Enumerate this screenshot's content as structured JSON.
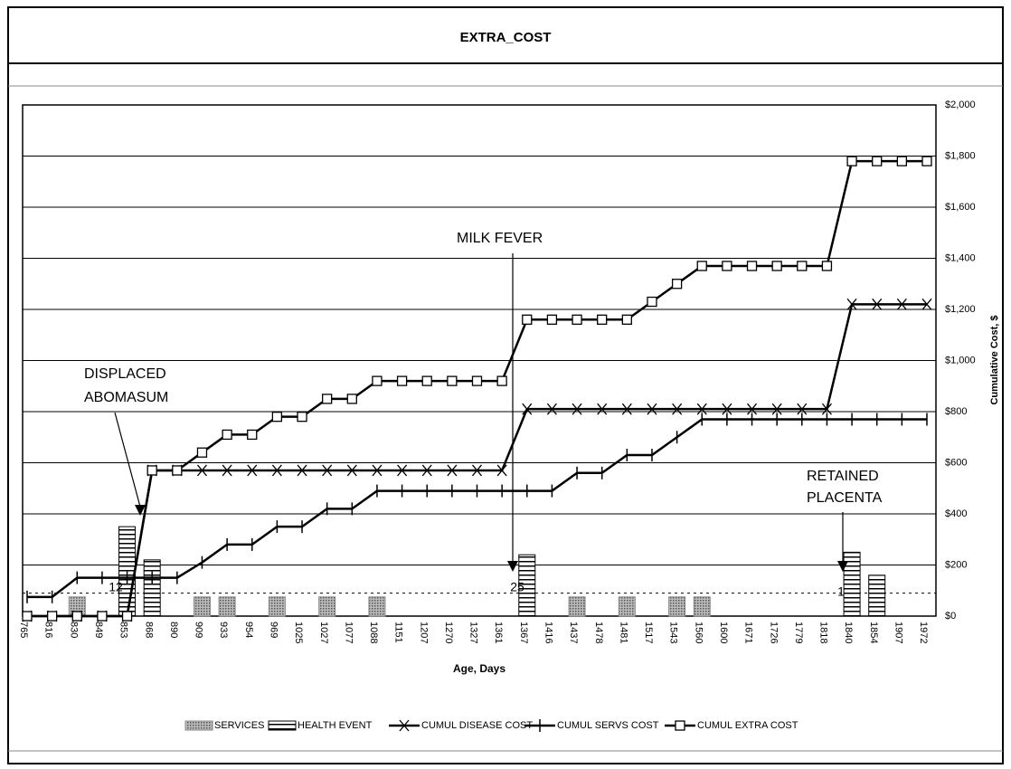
{
  "chart_data": {
    "type": "combo",
    "title": "EXTRA_COST",
    "x_label": "Age, Days",
    "y_label": "Cumulative Cost, $",
    "categories": [
      "765",
      "816",
      "830",
      "849",
      "853",
      "868",
      "890",
      "909",
      "933",
      "954",
      "969",
      "1025",
      "1027",
      "1077",
      "1088",
      "1151",
      "1207",
      "1270",
      "1327",
      "1361",
      "1367",
      "1416",
      "1437",
      "1478",
      "1481",
      "1517",
      "1543",
      "1560",
      "1600",
      "1671",
      "1726",
      "1779",
      "1818",
      "1840",
      "1854",
      "1907",
      "1972"
    ],
    "ylim": [
      0,
      2000
    ],
    "yticks": [
      {
        "value": 0,
        "label": "$0"
      },
      {
        "value": 200,
        "label": "$200"
      },
      {
        "value": 400,
        "label": "$400"
      },
      {
        "value": 600,
        "label": "$600"
      },
      {
        "value": 800,
        "label": "$800"
      },
      {
        "value": 1000,
        "label": "$1,000"
      },
      {
        "value": 1200,
        "label": "$1,200"
      },
      {
        "value": 1400,
        "label": "$1,400"
      },
      {
        "value": 1600,
        "label": "$1,600"
      },
      {
        "value": 1800,
        "label": "$1,800"
      },
      {
        "value": 2000,
        "label": "$2,000"
      }
    ],
    "grid": true,
    "reference_line": 90,
    "series": [
      {
        "name": "SERVICES",
        "type": "bar",
        "color": "#888888",
        "pattern": "dots",
        "values": [
          null,
          null,
          75,
          null,
          null,
          null,
          null,
          75,
          75,
          null,
          75,
          null,
          75,
          null,
          75,
          null,
          null,
          null,
          null,
          null,
          null,
          null,
          75,
          null,
          75,
          null,
          75,
          75,
          null,
          null,
          null,
          null,
          null,
          null,
          null,
          null,
          null
        ]
      },
      {
        "name": "HEALTH EVENT",
        "type": "bar",
        "color": "#000000",
        "pattern": "stripes",
        "values": [
          null,
          null,
          null,
          null,
          350,
          220,
          null,
          null,
          null,
          null,
          null,
          null,
          null,
          null,
          null,
          null,
          null,
          null,
          null,
          null,
          240,
          null,
          null,
          null,
          null,
          null,
          null,
          null,
          null,
          null,
          null,
          null,
          null,
          250,
          160,
          null,
          null
        ]
      },
      {
        "name": "CUMUL DISEASE COST",
        "type": "line",
        "color": "#000000",
        "marker": "x",
        "values": [
          0,
          0,
          0,
          0,
          0,
          570,
          570,
          570,
          570,
          570,
          570,
          570,
          570,
          570,
          570,
          570,
          570,
          570,
          570,
          570,
          810,
          810,
          810,
          810,
          810,
          810,
          810,
          810,
          810,
          810,
          810,
          810,
          810,
          1220,
          1220,
          1220,
          1220
        ]
      },
      {
        "name": "CUMUL SERVS COST",
        "type": "line",
        "color": "#000000",
        "marker": "plus",
        "values": [
          75,
          75,
          150,
          150,
          150,
          150,
          150,
          210,
          280,
          280,
          350,
          350,
          420,
          420,
          490,
          490,
          490,
          490,
          490,
          490,
          490,
          490,
          560,
          560,
          630,
          630,
          700,
          770,
          770,
          770,
          770,
          770,
          770,
          770,
          770,
          770,
          770
        ]
      },
      {
        "name": "CUMUL EXTRA COST",
        "type": "line",
        "color": "#000000",
        "marker": "square",
        "values": [
          0,
          0,
          0,
          0,
          0,
          570,
          570,
          640,
          710,
          710,
          780,
          780,
          850,
          850,
          920,
          920,
          920,
          920,
          920,
          920,
          1160,
          1160,
          1160,
          1160,
          1160,
          1230,
          1300,
          1370,
          1370,
          1370,
          1370,
          1370,
          1370,
          1780,
          1780,
          1780,
          1780
        ]
      }
    ],
    "annotations": [
      "DISPLACED ABOMASUM",
      "MILK FEVER",
      "RETAINED PLACENTA"
    ],
    "bar_labels": [
      "12",
      "25",
      "1"
    ]
  }
}
